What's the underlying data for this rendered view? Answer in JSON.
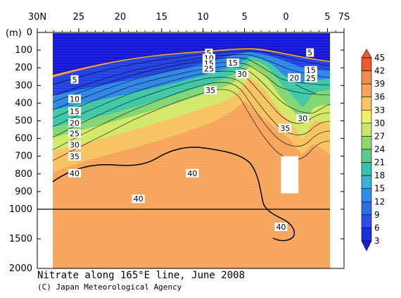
{
  "chart_data": {
    "type": "contour",
    "title": "Nitrate along 165°E line, June 2008",
    "credit": "(C) Japan Meteorological Agency",
    "x_axis": {
      "tick_labels": [
        "30N",
        "25",
        "20",
        "15",
        "10",
        "5",
        "0",
        "5",
        "7S"
      ],
      "latitudes": [
        30,
        25,
        20,
        15,
        10,
        5,
        0,
        -5,
        -7
      ],
      "range": [
        30,
        -7
      ]
    },
    "y_axis": {
      "unit_label": "(m)",
      "tick_labels": [
        "0",
        "100",
        "200",
        "300",
        "400",
        "500",
        "600",
        "700",
        "800",
        "900",
        "1000",
        "1500",
        "2000"
      ],
      "depths": [
        0,
        100,
        200,
        300,
        400,
        500,
        600,
        700,
        800,
        900,
        1000,
        1500,
        2000
      ],
      "range": [
        0,
        2000
      ],
      "scale_break_at": 1000
    },
    "colorbar": {
      "levels": [
        45,
        42,
        39,
        36,
        33,
        30,
        27,
        24,
        21,
        18,
        15,
        12,
        9,
        6,
        3
      ],
      "colors": [
        "#ee5a2c",
        "#f48a52",
        "#f5a459",
        "#f7c660",
        "#eef065",
        "#c9e767",
        "#8fd86e",
        "#58cd88",
        "#36c2ad",
        "#35b2d6",
        "#2e8ee8",
        "#2a6ee8",
        "#2850e6",
        "#1c2fe0",
        "#1a1adc"
      ]
    },
    "contour_labels": [
      {
        "text": "5",
        "lat": 25.5,
        "depth": 270
      },
      {
        "text": "10",
        "lat": 25.5,
        "depth": 380
      },
      {
        "text": "15",
        "lat": 25.5,
        "depth": 450
      },
      {
        "text": "20",
        "lat": 25.5,
        "depth": 515
      },
      {
        "text": "25",
        "lat": 25.5,
        "depth": 575
      },
      {
        "text": "30",
        "lat": 25.5,
        "depth": 640
      },
      {
        "text": "35",
        "lat": 25.5,
        "depth": 705
      },
      {
        "text": "40",
        "lat": 25.5,
        "depth": 800
      },
      {
        "text": "40",
        "lat": 17.8,
        "depth": 945
      },
      {
        "text": "40",
        "lat": 11.3,
        "depth": 800
      },
      {
        "text": "35",
        "lat": 9.1,
        "depth": 330
      },
      {
        "text": "5",
        "lat": 9.3,
        "depth": 120
      },
      {
        "text": "10",
        "lat": 9.3,
        "depth": 150
      },
      {
        "text": "15",
        "lat": 9.3,
        "depth": 180
      },
      {
        "text": "25",
        "lat": 9.3,
        "depth": 210
      },
      {
        "text": "15",
        "lat": 6.4,
        "depth": 175
      },
      {
        "text": "30",
        "lat": 5.3,
        "depth": 240
      },
      {
        "text": "5",
        "lat": -2.9,
        "depth": 118
      },
      {
        "text": "15",
        "lat": -3.0,
        "depth": 218
      },
      {
        "text": "25",
        "lat": -3.0,
        "depth": 262
      },
      {
        "text": "20",
        "lat": -1.0,
        "depth": 260
      },
      {
        "text": "30",
        "lat": -2.0,
        "depth": 490
      },
      {
        "text": "35",
        "lat": 0.1,
        "depth": 545
      },
      {
        "text": "40",
        "lat": 0.6,
        "depth": 1310
      }
    ],
    "missing_data_box": {
      "lat_min": -1.5,
      "lat_max": 0.6,
      "depth_min": 700,
      "depth_max": 910
    }
  }
}
